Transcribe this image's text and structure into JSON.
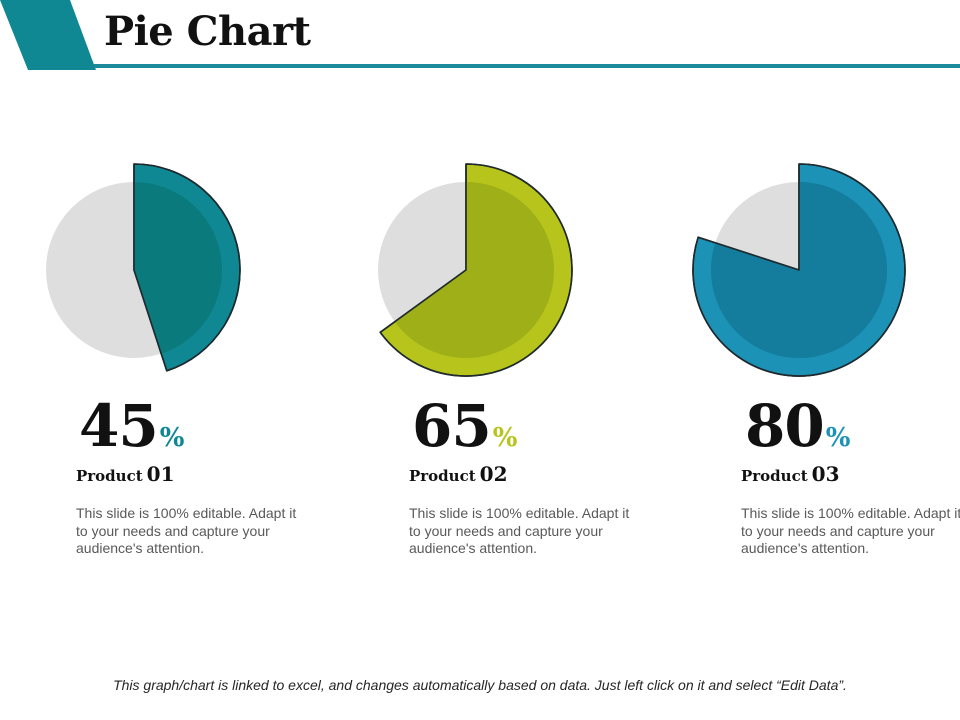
{
  "title": "Pie Chart",
  "colors": {
    "header_accent": "#1a8a9c",
    "track": "#dedede"
  },
  "chart_data": [
    {
      "type": "pie",
      "categories": [
        "Product 01"
      ],
      "values": [
        45
      ],
      "value_label": "45",
      "unit": "%",
      "colors": {
        "main": "#0f8893",
        "inner": "#0a7a7d",
        "accent": "#0f8893"
      },
      "product_word": "Product",
      "product_num": "01",
      "description": "This slide is 100% editable. Adapt it to your needs and capture your audience's attention."
    },
    {
      "type": "pie",
      "categories": [
        "Product 02"
      ],
      "values": [
        65
      ],
      "value_label": "65",
      "unit": "%",
      "colors": {
        "main": "#b6c41c",
        "inner": "#9faf17",
        "accent": "#b6c41c"
      },
      "product_word": "Product",
      "product_num": "02",
      "description": "This slide is 100% editable. Adapt it to your needs and capture your audience's attention."
    },
    {
      "type": "pie",
      "categories": [
        "Product 03"
      ],
      "values": [
        80
      ],
      "value_label": "80",
      "unit": "%",
      "colors": {
        "main": "#1b92b6",
        "inner": "#147c9c",
        "accent": "#1b92b6"
      },
      "product_word": "Product",
      "product_num": "03",
      "description": "This slide is 100% editable. Adapt it to your needs and capture your audience's attention."
    }
  ],
  "footnote": "This graph/chart is linked to excel, and changes automatically based on data. Just left click on it and select “Edit Data”."
}
